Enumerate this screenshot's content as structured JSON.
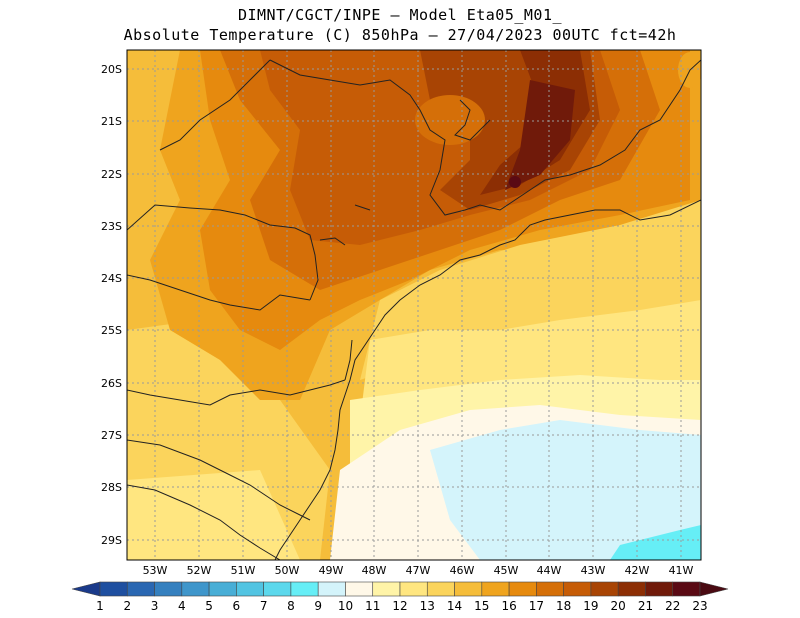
{
  "header": {
    "line1": "DIMNT/CGCT/INPE –  Model Eta05_M01_",
    "line2": "Absolute Temperature (C) 850hPa –  27/04/2023 00UTC fct=42h"
  },
  "map": {
    "lat_labels": [
      "20S",
      "21S",
      "22S",
      "23S",
      "24S",
      "25S",
      "26S",
      "27S",
      "28S",
      "29S"
    ],
    "lon_labels": [
      "53W",
      "52W",
      "51W",
      "50W",
      "49W",
      "48W",
      "47W",
      "46W",
      "45W",
      "44W",
      "43W",
      "42W",
      "41W"
    ]
  },
  "colorbar": {
    "labels": [
      "1",
      "2",
      "3",
      "4",
      "5",
      "6",
      "7",
      "8",
      "9",
      "10",
      "11",
      "12",
      "13",
      "14",
      "15",
      "16",
      "17",
      "18",
      "19",
      "20",
      "21",
      "22",
      "23"
    ],
    "colors": [
      "#1a3a8a",
      "#1e4fa0",
      "#2a67b2",
      "#3580bf",
      "#3f96cb",
      "#48aed6",
      "#52c4e2",
      "#5cd8ec",
      "#66eef6",
      "#d4f4fb",
      "#fff8e8",
      "#fff4a8",
      "#ffe680",
      "#fbd45c",
      "#f5bd3a",
      "#efa41e",
      "#e68a0e",
      "#d56f08",
      "#c65c06",
      "#a84404",
      "#8c2e04",
      "#701a0a",
      "#5a0a14"
    ],
    "low_color": "#1a3a8a",
    "high_color": "#4a0a12"
  }
}
